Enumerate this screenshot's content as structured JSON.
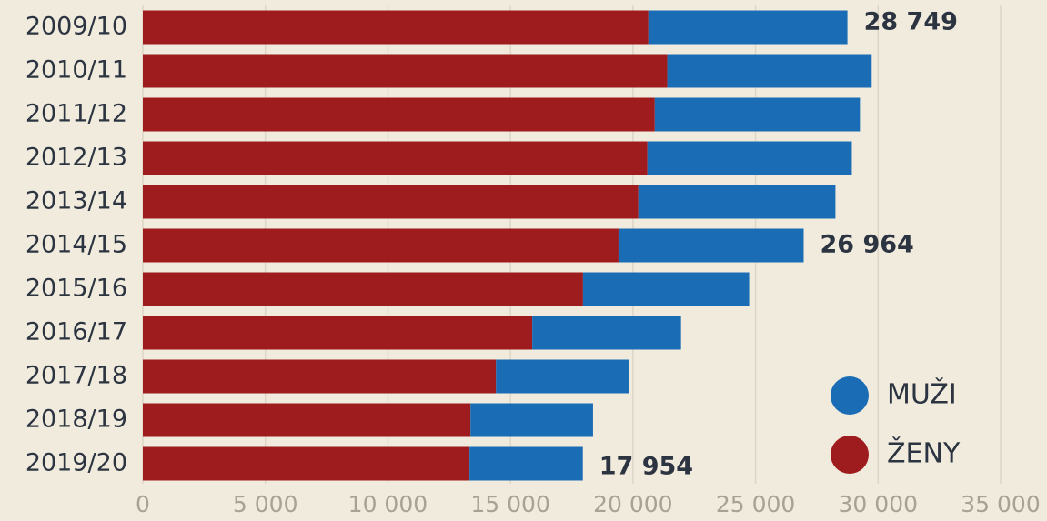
{
  "chart_data": {
    "type": "stacked-bar-horizontal",
    "categories": [
      "2009/10",
      "2010/11",
      "2011/12",
      "2012/13",
      "2013/14",
      "2014/15",
      "2015/16",
      "2016/17",
      "2017/18",
      "2018/19",
      "2019/20"
    ],
    "series": [
      {
        "name": "ŽENY",
        "color": "#9e1b1e",
        "values": [
          20630,
          21400,
          20890,
          20590,
          20220,
          19410,
          17960,
          15890,
          14410,
          13370,
          13330
        ]
      },
      {
        "name": "MUŽI",
        "color": "#1a6db5",
        "values": [
          8119,
          8340,
          8370,
          8340,
          8040,
          7554,
          6780,
          6070,
          5440,
          5000,
          4624
        ]
      }
    ],
    "totals": [
      {
        "category": "2009/10",
        "value": 28749,
        "label": "28 749"
      },
      {
        "category": "2014/15",
        "value": 26964,
        "label": "26 964"
      },
      {
        "category": "2019/20",
        "value": 17954,
        "label": "17 954"
      }
    ],
    "xlim": [
      0,
      35000
    ],
    "xticks": [
      0,
      {
        "value": 5000,
        "label": "5 000"
      },
      {
        "value": 10000,
        "label": "10 000"
      },
      {
        "value": 15000,
        "label": "15 000"
      },
      {
        "value": 20000,
        "label": "20 000"
      },
      {
        "value": 25000,
        "label": "25 000"
      },
      {
        "value": 30000,
        "label": "30 000"
      },
      {
        "value": 35000,
        "label": "35 000"
      }
    ],
    "grid": true
  }
}
